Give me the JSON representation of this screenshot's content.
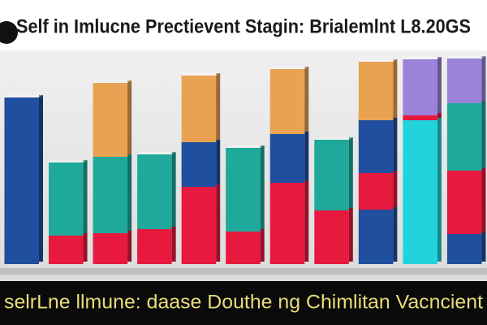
{
  "chart_data": {
    "type": "stacked_bar",
    "title": "Self in Imlucne Prectievent Stagin: Brialemlnt L8.20GS",
    "caption": "selrLne llmune: daase Douthe ng Chimlitan Vacncient",
    "categories": [
      null,
      null,
      null,
      null,
      null,
      null,
      null,
      null,
      null,
      null,
      null
    ],
    "ylim": [
      0,
      260
    ],
    "series": [
      {
        "color": "#1f4f9e",
        "values": [
          205,
          null,
          null,
          null,
          null,
          null,
          null,
          null,
          67,
          null,
          37
        ]
      },
      {
        "color": "#22d3dc",
        "values": [
          null,
          null,
          null,
          null,
          null,
          null,
          null,
          null,
          null,
          177,
          null
        ]
      },
      {
        "color": "#e8193e",
        "values": [
          null,
          35,
          38,
          43,
          95,
          40,
          100,
          66,
          45,
          6,
          78
        ]
      },
      {
        "color": "#1fa99b",
        "values": [
          null,
          90,
          94,
          92,
          null,
          103,
          null,
          87,
          null,
          null,
          83
        ]
      },
      {
        "color": "#1f4f9e",
        "values": [
          null,
          null,
          null,
          null,
          55,
          null,
          60,
          null,
          65,
          null,
          null
        ]
      },
      {
        "color": "#e9a152",
        "values": [
          null,
          null,
          91,
          null,
          82,
          null,
          80,
          null,
          72,
          null,
          null
        ]
      },
      {
        "color": "#9b82da",
        "values": [
          null,
          null,
          null,
          null,
          null,
          null,
          null,
          null,
          null,
          69,
          55
        ]
      }
    ]
  }
}
